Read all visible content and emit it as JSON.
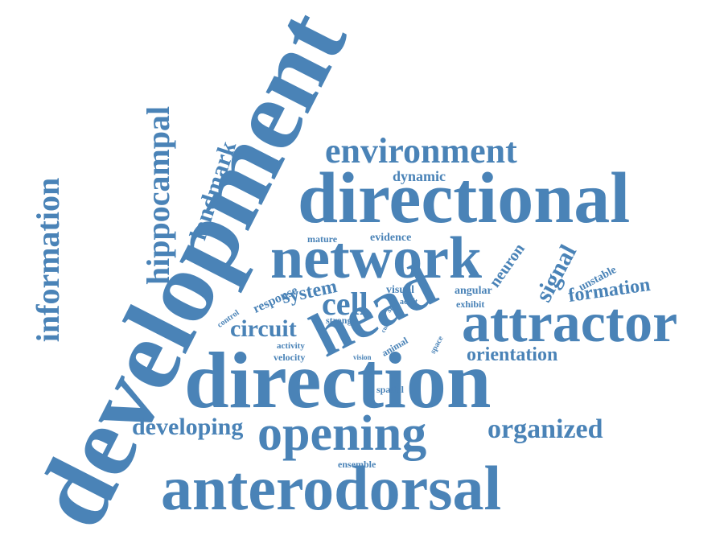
{
  "color": "#4a83b7",
  "words": {
    "development": "development",
    "direction": "direction",
    "directional": "directional",
    "anterodorsal": "anterodorsal",
    "network": "network",
    "attractor": "attractor",
    "head": "head",
    "opening": "opening",
    "environment": "environment",
    "information": "information",
    "hippocampal": "hippocampal",
    "landmark": "landmark",
    "developing": "developing",
    "organized": "organized",
    "orientation": "orientation",
    "cell": "cell",
    "circuit": "circuit",
    "formation": "formation",
    "signal": "signal",
    "neuron": "neuron",
    "system": "system",
    "response": "response",
    "dynamic": "dynamic",
    "evidence": "evidence",
    "mature": "mature",
    "visual": "visual",
    "angular": "angular",
    "exhibit": "exhibit",
    "unstable": "unstable",
    "self": "self",
    "adult": "adult",
    "strong": "strong",
    "control": "control",
    "activity": "activity",
    "velocity": "velocity",
    "vision": "vision",
    "animal": "animal",
    "space": "space",
    "spatial": "spatial",
    "ensemble": "ensemble",
    "cue": "cue"
  }
}
